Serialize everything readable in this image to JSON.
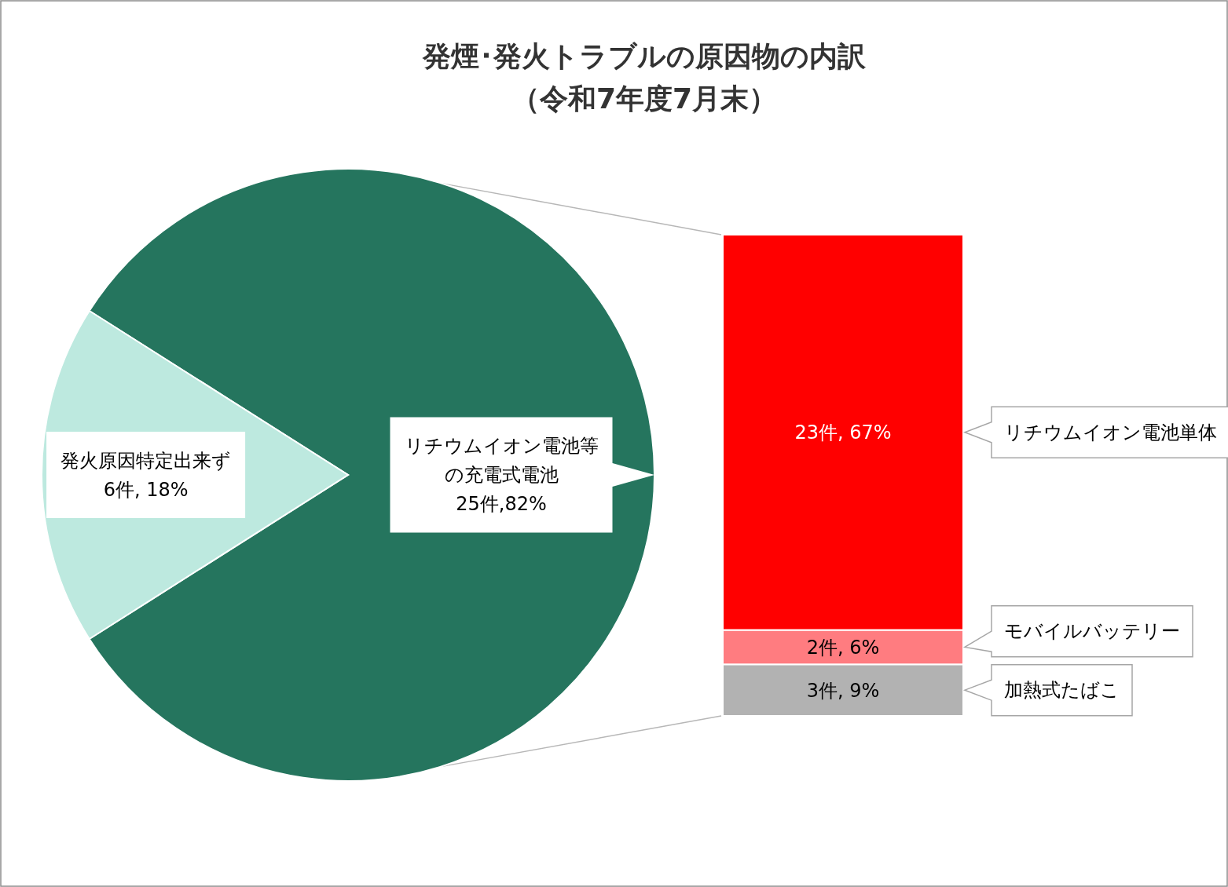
{
  "chart_data": [
    {
      "type": "pie",
      "title": "発煙･発火トラブルの原因物の内訳",
      "subtitle": "（令和7年度7月末）",
      "categories": [
        "リチウムイオン電池等の充電式電池",
        "発火原因特定出来ず"
      ],
      "values": [
        82,
        18
      ],
      "value_labels": [
        "25件,82%",
        "6件, 18%"
      ],
      "colors": [
        "#25755e",
        "#bde9df"
      ]
    },
    {
      "type": "bar",
      "stacked": true,
      "categories": [
        null
      ],
      "series": [
        {
          "name": "加熱式たばこ",
          "color": "#b2b2b2",
          "values": [
            3
          ],
          "value_labels": [
            "3件, 9%"
          ]
        },
        {
          "name": "モバイルバッテリー",
          "color": "#ff7c80",
          "values": [
            2
          ],
          "value_labels": [
            "2件, 6%"
          ]
        },
        {
          "name": "リチウムイオン電池単体",
          "color": "#ff0000",
          "values": [
            23
          ],
          "value_labels": [
            "23件, 67%"
          ]
        }
      ]
    }
  ]
}
